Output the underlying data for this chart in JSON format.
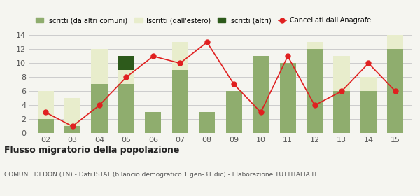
{
  "years": [
    "02",
    "03",
    "04",
    "05",
    "06",
    "07",
    "08",
    "09",
    "10",
    "11",
    "12",
    "13",
    "14",
    "15"
  ],
  "iscritti_comuni": [
    2,
    1,
    7,
    7,
    3,
    9,
    3,
    6,
    11,
    10,
    12,
    6,
    6,
    12
  ],
  "iscritti_estero": [
    4,
    4,
    5,
    2,
    0,
    4,
    0,
    0,
    0,
    0,
    1,
    5,
    2,
    2
  ],
  "iscritti_altri": [
    0,
    0,
    0,
    2,
    0,
    0,
    0,
    0,
    0,
    0,
    0,
    0,
    0,
    0
  ],
  "iscritti_altri_dark": [
    0,
    0,
    0,
    2,
    0,
    0,
    0,
    0,
    0,
    0,
    0,
    0,
    0,
    0
  ],
  "bar_stack2": [
    0,
    0,
    0,
    2,
    0,
    0,
    0,
    0,
    0,
    0,
    0,
    0,
    0,
    0
  ],
  "cancellati": [
    3,
    1,
    4,
    8,
    11,
    10,
    13,
    7,
    3,
    11,
    4,
    6,
    10,
    6
  ],
  "color_comuni": "#8fad6e",
  "color_estero": "#e8edcc",
  "color_altri": "#2d5a1b",
  "color_cancellati": "#e02020",
  "ylim": [
    0,
    14
  ],
  "yticks": [
    0,
    2,
    4,
    6,
    8,
    10,
    12,
    14
  ],
  "title": "Flusso migratorio della popolazione",
  "subtitle": "COMUNE DI DON (TN) - Dati ISTAT (bilancio demografico 1 gen-31 dic) - Elaborazione TUTTITALIA.IT",
  "legend_labels": [
    "Iscritti (da altri comuni)",
    "Iscritti (dall'estero)",
    "Iscritti (altri)",
    "Cancellati dall'Anagrafe"
  ],
  "bg_color": "#f5f5f0"
}
